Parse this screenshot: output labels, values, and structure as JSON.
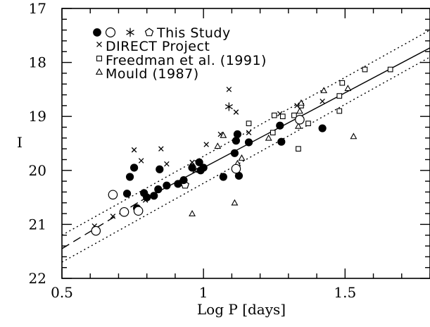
{
  "chart_data": {
    "type": "scatter",
    "xlabel": "Log P [days]",
    "ylabel": "I",
    "xlim": [
      0.5,
      1.8
    ],
    "ylim": [
      22,
      17
    ],
    "y_inverted": true,
    "x_ticks": [
      0.5,
      1,
      1.5
    ],
    "x_tick_labels": [
      "0.5",
      "1",
      "1.5"
    ],
    "y_ticks": [
      17,
      18,
      19,
      20,
      21,
      22
    ],
    "y_tick_labels": [
      "17",
      "18",
      "19",
      "20",
      "21",
      "22"
    ],
    "legend": {
      "placement": "top-left",
      "entries": [
        {
          "markers": [
            "filled-circle",
            "open-circle",
            "asterisk",
            "pentagon"
          ],
          "label": "This Study"
        },
        {
          "markers": [
            "cross"
          ],
          "label": "DIRECT Project"
        },
        {
          "markers": [
            "square"
          ],
          "label": "Freedman et al. (1991)"
        },
        {
          "markers": [
            "triangle"
          ],
          "label": "Mould (1987)"
        }
      ]
    },
    "series": [
      {
        "marker": "filled-circle",
        "points": [
          [
            0.73,
            20.43
          ],
          [
            0.74,
            20.12
          ],
          [
            0.755,
            19.95
          ],
          [
            0.765,
            20.7
          ],
          [
            0.79,
            20.42
          ],
          [
            0.8,
            20.5
          ],
          [
            0.825,
            20.47
          ],
          [
            0.84,
            20.35
          ],
          [
            0.845,
            19.98
          ],
          [
            0.87,
            20.28
          ],
          [
            0.91,
            20.25
          ],
          [
            0.93,
            20.18
          ],
          [
            0.96,
            19.95
          ],
          [
            0.985,
            19.85
          ],
          [
            0.99,
            20.0
          ],
          [
            1.0,
            19.95
          ],
          [
            1.07,
            20.12
          ],
          [
            1.11,
            19.68
          ],
          [
            1.115,
            19.45
          ],
          [
            1.12,
            19.33
          ],
          [
            1.125,
            20.1
          ],
          [
            1.16,
            19.48
          ],
          [
            1.27,
            19.17
          ],
          [
            1.275,
            19.47
          ],
          [
            1.42,
            19.22
          ]
        ]
      },
      {
        "marker": "open-circle",
        "points": [
          [
            0.62,
            21.12
          ],
          [
            0.68,
            20.45
          ],
          [
            0.72,
            20.77
          ],
          [
            0.77,
            20.75
          ],
          [
            1.115,
            19.97
          ],
          [
            1.34,
            19.06
          ]
        ]
      },
      {
        "marker": "asterisk",
        "points": [
          [
            1.09,
            18.82
          ]
        ]
      },
      {
        "marker": "pentagon",
        "points": [
          [
            0.935,
            20.27
          ]
        ]
      },
      {
        "marker": "cross",
        "points": [
          [
            0.615,
            21.03
          ],
          [
            0.68,
            20.85
          ],
          [
            0.755,
            19.62
          ],
          [
            0.78,
            19.82
          ],
          [
            0.795,
            20.55
          ],
          [
            0.85,
            19.6
          ],
          [
            0.87,
            19.88
          ],
          [
            0.96,
            19.85
          ],
          [
            0.97,
            20.0
          ],
          [
            1.01,
            19.52
          ],
          [
            1.06,
            19.33
          ],
          [
            1.09,
            18.5
          ],
          [
            1.115,
            18.92
          ],
          [
            1.16,
            19.3
          ],
          [
            1.27,
            18.95
          ],
          [
            1.33,
            18.8
          ],
          [
            1.42,
            18.72
          ]
        ]
      },
      {
        "marker": "square",
        "points": [
          [
            1.16,
            19.13
          ],
          [
            1.25,
            18.98
          ],
          [
            1.245,
            19.3
          ],
          [
            1.28,
            19.0
          ],
          [
            1.32,
            18.98
          ],
          [
            1.335,
            19.6
          ],
          [
            1.345,
            18.8
          ],
          [
            1.37,
            19.13
          ],
          [
            1.48,
            18.62
          ],
          [
            1.48,
            18.9
          ],
          [
            1.49,
            18.38
          ],
          [
            1.57,
            18.13
          ],
          [
            1.66,
            18.13
          ]
        ]
      },
      {
        "marker": "triangle",
        "points": [
          [
            0.96,
            20.8
          ],
          [
            1.05,
            19.55
          ],
          [
            1.07,
            19.35
          ],
          [
            1.11,
            20.6
          ],
          [
            1.12,
            19.87
          ],
          [
            1.135,
            19.77
          ],
          [
            1.23,
            19.4
          ],
          [
            1.34,
            18.9
          ],
          [
            1.345,
            18.75
          ],
          [
            1.425,
            18.52
          ],
          [
            1.51,
            18.48
          ],
          [
            1.53,
            19.37
          ],
          [
            1.335,
            19.18
          ]
        ]
      }
    ],
    "fit_lines": [
      {
        "style": "solid",
        "x": [
          0.78,
          1.8
        ],
        "y": [
          20.56,
          17.73
        ]
      },
      {
        "style": "dashed",
        "x": [
          0.5,
          0.78
        ],
        "y": [
          21.45,
          20.56
        ]
      },
      {
        "style": "dotted",
        "x": [
          0.5,
          1.8
        ],
        "y": [
          21.2,
          17.4
        ]
      },
      {
        "style": "dotted",
        "x": [
          0.5,
          1.8
        ],
        "y": [
          21.7,
          17.9
        ]
      }
    ]
  }
}
